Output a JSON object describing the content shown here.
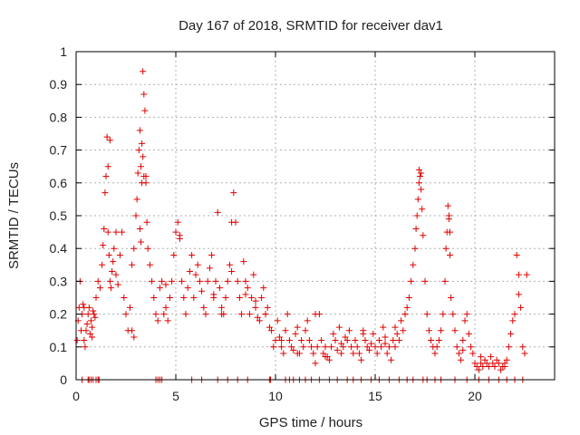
{
  "chart_data": {
    "type": "scatter",
    "title": "Day 167 of 2018, SRMTID for receiver dav1",
    "xlabel": "GPS time / hours",
    "ylabel": "SRMTID / TECUs",
    "xlim": [
      0,
      24
    ],
    "ylim": [
      0,
      1
    ],
    "xticks": [
      0,
      5,
      10,
      15,
      20
    ],
    "yticks": [
      0,
      0.1,
      0.2,
      0.3,
      0.4,
      0.5,
      0.6,
      0.7,
      0.8,
      0.9,
      1
    ],
    "xtick_labels": [
      "0",
      "5",
      "10",
      "15",
      "20"
    ],
    "ytick_labels": [
      "0",
      "0.1",
      "0.2",
      "0.3",
      "0.4",
      "0.5",
      "0.6",
      "0.7",
      "0.8",
      "0.9",
      "1"
    ],
    "grid": true,
    "marker": "+",
    "color": "#e00000",
    "series": [
      {
        "name": "SRMTID",
        "x": [
          0.05,
          0.1,
          0.15,
          0.2,
          0.25,
          0.3,
          0.35,
          0.4,
          0.45,
          0.5,
          0.55,
          0.6,
          0.65,
          0.7,
          0.75,
          0.8,
          0.85,
          0.9,
          0.95,
          1.0,
          1.1,
          1.2,
          1.3,
          1.35,
          1.4,
          1.45,
          1.5,
          1.55,
          1.6,
          1.65,
          1.7,
          1.75,
          1.8,
          1.85,
          1.9,
          2.0,
          2.1,
          2.2,
          2.3,
          2.4,
          2.5,
          2.6,
          2.7,
          2.8,
          2.9,
          3.0,
          3.05,
          3.1,
          3.15,
          3.2,
          3.25,
          3.3,
          3.35,
          3.4,
          3.45,
          3.5,
          3.55,
          3.6,
          3.7,
          3.8,
          3.9,
          4.0,
          4.1,
          4.2,
          4.3,
          4.4,
          4.5,
          4.6,
          4.7,
          4.8,
          4.9,
          5.0,
          5.1,
          5.2,
          5.3,
          5.4,
          5.5,
          5.6,
          5.7,
          5.8,
          5.9,
          6.0,
          6.1,
          6.2,
          6.3,
          6.4,
          6.5,
          6.6,
          6.7,
          6.8,
          6.9,
          7.0,
          7.1,
          7.2,
          7.3,
          7.4,
          7.5,
          7.6,
          7.7,
          7.8,
          7.9,
          8.0,
          8.1,
          8.2,
          8.3,
          8.4,
          8.5,
          8.6,
          8.7,
          8.8,
          8.9,
          9.0,
          9.1,
          9.2,
          9.3,
          9.4,
          9.5,
          9.6,
          9.7,
          9.8,
          9.9,
          10.0,
          10.1,
          10.2,
          10.3,
          10.4,
          10.5,
          10.6,
          10.7,
          10.8,
          10.9,
          11.0,
          11.1,
          11.2,
          11.3,
          11.4,
          11.5,
          11.6,
          11.7,
          11.8,
          11.9,
          12.0,
          12.1,
          12.2,
          12.3,
          12.4,
          12.5,
          12.6,
          12.7,
          12.8,
          12.9,
          13.0,
          13.1,
          13.2,
          13.3,
          13.4,
          13.5,
          13.6,
          13.7,
          13.8,
          13.9,
          14.0,
          14.1,
          14.2,
          14.3,
          14.4,
          14.5,
          14.6,
          14.7,
          14.8,
          14.9,
          15.0,
          15.1,
          15.2,
          15.3,
          15.4,
          15.5,
          15.6,
          15.7,
          15.8,
          15.9,
          16.0,
          16.1,
          16.2,
          16.3,
          16.4,
          16.5,
          16.6,
          16.7,
          16.8,
          16.9,
          17.0,
          17.05,
          17.1,
          17.15,
          17.2,
          17.25,
          17.3,
          17.35,
          17.4,
          17.5,
          17.6,
          17.7,
          17.8,
          17.9,
          18.0,
          18.1,
          18.2,
          18.3,
          18.4,
          18.5,
          18.55,
          18.6,
          18.65,
          18.7,
          18.75,
          18.8,
          18.9,
          19.0,
          19.1,
          19.2,
          19.3,
          19.4,
          19.5,
          19.6,
          19.7,
          19.8,
          19.9,
          20.0,
          20.1,
          20.2,
          20.3,
          20.4,
          20.5,
          20.6,
          20.7,
          20.8,
          20.9,
          21.0,
          21.1,
          21.2,
          21.3,
          21.4,
          21.5,
          21.6,
          21.7,
          21.8,
          21.9,
          22.0,
          22.1,
          22.2,
          22.3,
          22.4,
          22.5,
          22.6,
          0.4,
          0.8,
          1.6,
          1.7,
          3.3,
          3.35,
          3.4,
          3.5,
          3.2,
          3.25,
          7.8,
          12.0,
          17.3,
          17.2,
          18.7,
          18.75,
          22.2,
          2.8,
          2.9,
          5.2,
          6.9,
          16.0,
          16.5,
          21.5,
          8.5,
          9.5,
          10.3,
          11.1,
          12.5,
          13.3,
          14.4,
          15.5,
          19.4,
          20.3,
          2.0,
          4.5,
          7.3,
          9.0,
          0.3,
          0.6,
          0.65,
          0.75,
          0.85,
          1.0,
          1.1,
          1.15,
          4.0,
          4.1,
          4.2,
          4.3,
          5.8,
          6.3,
          7.1,
          7.6,
          8.1,
          8.6,
          9.7,
          9.75,
          10.5,
          10.7,
          10.9,
          11.2,
          11.5,
          11.8,
          12.2,
          12.7,
          13.1,
          13.6,
          13.9,
          14.3,
          14.8,
          15.2,
          15.7,
          16.2,
          16.6,
          16.9,
          17.4,
          17.6,
          18.0,
          18.3,
          19.0,
          19.6,
          20.2,
          20.7,
          21.2,
          21.6,
          22.0,
          22.4
        ],
        "y": [
          0.12,
          0.18,
          0.22,
          0.3,
          0.15,
          0.2,
          0.23,
          0.12,
          0.1,
          0.15,
          0.17,
          0.2,
          0.22,
          0.14,
          0.18,
          0.16,
          0.21,
          0.2,
          0.19,
          0.25,
          0.3,
          0.28,
          0.35,
          0.41,
          0.46,
          0.57,
          0.62,
          0.74,
          0.45,
          0.38,
          0.3,
          0.28,
          0.33,
          0.36,
          0.4,
          0.32,
          0.29,
          0.38,
          0.45,
          0.25,
          0.2,
          0.15,
          0.22,
          0.35,
          0.4,
          0.5,
          0.55,
          0.63,
          0.7,
          0.76,
          0.65,
          0.6,
          0.94,
          0.87,
          0.82,
          0.62,
          0.48,
          0.4,
          0.35,
          0.3,
          0.25,
          0.2,
          0.18,
          0.28,
          0.3,
          0.2,
          0.22,
          0.18,
          0.25,
          0.3,
          0.38,
          0.45,
          0.48,
          0.44,
          0.3,
          0.25,
          0.2,
          0.28,
          0.33,
          0.38,
          0.25,
          0.32,
          0.35,
          0.3,
          0.27,
          0.22,
          0.2,
          0.3,
          0.34,
          0.38,
          0.25,
          0.3,
          0.51,
          0.28,
          0.22,
          0.2,
          0.25,
          0.3,
          0.35,
          0.33,
          0.57,
          0.48,
          0.3,
          0.25,
          0.2,
          0.36,
          0.3,
          0.28,
          0.2,
          0.25,
          0.32,
          0.22,
          0.19,
          0.18,
          0.25,
          0.28,
          0.2,
          0.22,
          0.16,
          0.15,
          0.1,
          0.12,
          0.18,
          0.13,
          0.1,
          0.08,
          0.15,
          0.2,
          0.12,
          0.1,
          0.09,
          0.14,
          0.16,
          0.08,
          0.12,
          0.1,
          0.15,
          0.18,
          0.12,
          0.1,
          0.08,
          0.05,
          0.1,
          0.2,
          0.12,
          0.08,
          0.1,
          0.07,
          0.06,
          0.1,
          0.14,
          0.12,
          0.09,
          0.16,
          0.08,
          0.1,
          0.13,
          0.12,
          0.15,
          0.1,
          0.08,
          0.12,
          0.1,
          0.08,
          0.06,
          0.15,
          0.12,
          0.1,
          0.09,
          0.11,
          0.14,
          0.1,
          0.08,
          0.12,
          0.1,
          0.16,
          0.13,
          0.08,
          0.1,
          0.06,
          0.12,
          0.1,
          0.14,
          0.12,
          0.18,
          0.15,
          0.2,
          0.22,
          0.25,
          0.3,
          0.35,
          0.4,
          0.46,
          0.5,
          0.55,
          0.6,
          0.62,
          0.58,
          0.52,
          0.44,
          0.3,
          0.2,
          0.15,
          0.12,
          0.1,
          0.08,
          0.1,
          0.12,
          0.15,
          0.2,
          0.3,
          0.4,
          0.45,
          0.53,
          0.49,
          0.38,
          0.25,
          0.2,
          0.15,
          0.1,
          0.08,
          0.06,
          0.12,
          0.18,
          0.2,
          0.14,
          0.1,
          0.08,
          0.05,
          0.04,
          0.03,
          0.05,
          0.04,
          0.06,
          0.05,
          0.04,
          0.07,
          0.05,
          0.04,
          0.06,
          0.05,
          0.03,
          0.04,
          0.05,
          0.06,
          0.1,
          0.14,
          0.18,
          0.2,
          0.38,
          0.32,
          0.22,
          0.1,
          0.08,
          0.32,
          0.22,
          0.13,
          0.65,
          0.73,
          0.72,
          0.68,
          0.62,
          0.6,
          0.46,
          0.42,
          0.48,
          0.2,
          0.63,
          0.64,
          0.5,
          0.45,
          0.26,
          0.15,
          0.13,
          0.43,
          0.26,
          0.16,
          0.2,
          0.04,
          0.26,
          0.2,
          0.12,
          0.08,
          0.07,
          0.11,
          0.14,
          0.11,
          0.09,
          0.07,
          0.45,
          0.29,
          0.2,
          0.24,
          0,
          0,
          0,
          0,
          0,
          0,
          0,
          0,
          0,
          0,
          0,
          0,
          0,
          0,
          0,
          0,
          0,
          0,
          0,
          0,
          0,
          0,
          0,
          0,
          0,
          0,
          0,
          0,
          0,
          0,
          0,
          0,
          0,
          0,
          0,
          0,
          0,
          0,
          0,
          0,
          0,
          0,
          0,
          0,
          0,
          0,
          0,
          0,
          0,
          0
        ]
      }
    ]
  }
}
